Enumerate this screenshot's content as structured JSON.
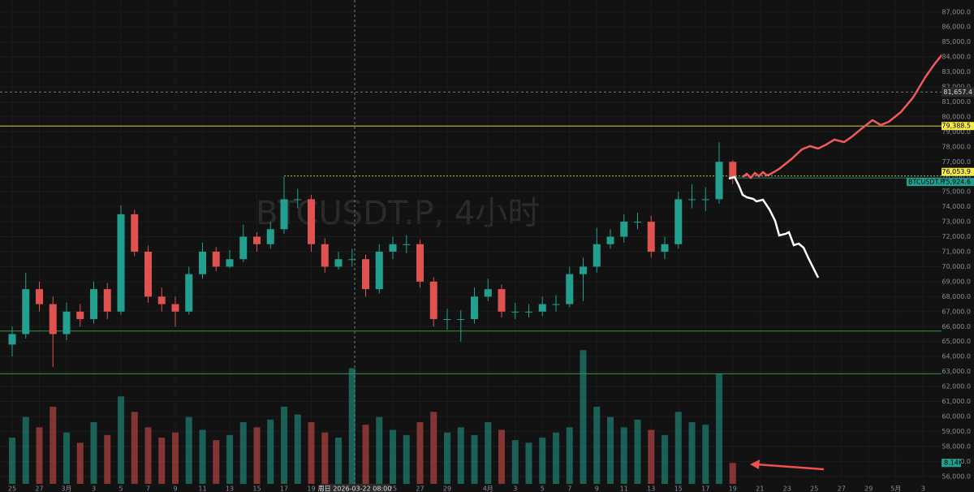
{
  "chart_data": {
    "type": "candlestick",
    "watermark": "BTCUSDT.P, 4小时",
    "symbol_tag": "BTCUSDT.P",
    "crosshair_time": "周日 2026-03-22  08:00",
    "crosshair_price": {
      "value": 81657.4,
      "label": "81,657.4"
    },
    "open": [
      64800,
      65500,
      68500,
      67500,
      65500,
      67000,
      66500,
      68500,
      67000,
      73500,
      71000,
      68000,
      67500,
      67000,
      69500,
      71000,
      70000,
      70500,
      72000,
      71500,
      72500,
      74500,
      74500,
      71500,
      70000,
      70500,
      70500,
      68500,
      71000,
      71500,
      71500,
      69000,
      66500,
      66500,
      66500,
      68000,
      68500,
      67000,
      67000,
      67000,
      67500,
      67500,
      69500,
      70000,
      71500,
      72000,
      73000,
      73000,
      71000,
      71500,
      74500,
      74500,
      74500,
      77000
    ],
    "high": [
      66000,
      69600,
      69000,
      68000,
      67600,
      67500,
      69000,
      68900,
      74100,
      73800,
      71400,
      68600,
      68000,
      70000,
      71600,
      71300,
      71100,
      72800,
      72300,
      73000,
      76000,
      75200,
      74800,
      71900,
      71000,
      71200,
      70800,
      71500,
      72000,
      72100,
      71800,
      69300,
      67200,
      67100,
      68600,
      69200,
      68800,
      67600,
      67500,
      68000,
      68100,
      70000,
      70600,
      72600,
      72500,
      73500,
      73600,
      73400,
      72000,
      75000,
      75500,
      75300,
      78300,
      77100
    ],
    "low": [
      64000,
      65200,
      67000,
      63300,
      65100,
      66000,
      66200,
      66500,
      66800,
      70700,
      67600,
      67000,
      66000,
      66800,
      69200,
      69700,
      69900,
      70300,
      71000,
      71200,
      72200,
      73900,
      71000,
      69600,
      69800,
      70000,
      68000,
      68200,
      70500,
      70900,
      68600,
      66000,
      65800,
      65000,
      66200,
      67700,
      66600,
      66500,
      66600,
      66700,
      67000,
      67300,
      67700,
      69600,
      71200,
      71600,
      72500,
      70600,
      70500,
      71200,
      73900,
      73700,
      74200,
      75500
    ],
    "close": [
      65500,
      68500,
      67500,
      65500,
      67000,
      66500,
      68500,
      67000,
      73500,
      71000,
      68000,
      67500,
      67000,
      69500,
      71000,
      70000,
      70500,
      72000,
      71500,
      72500,
      74500,
      74500,
      71500,
      70000,
      70500,
      70500,
      68500,
      71000,
      71500,
      71500,
      69000,
      66500,
      66500,
      66500,
      68000,
      68500,
      67000,
      67000,
      67000,
      67500,
      67500,
      69500,
      70000,
      71500,
      72000,
      73000,
      73000,
      71000,
      71500,
      74500,
      74500,
      74500,
      77000,
      75924.6
    ],
    "up_color": "#22a08f",
    "down_color": "#e0524f",
    "volume": [
      18,
      26,
      22,
      30,
      20,
      16,
      24,
      19,
      34,
      28,
      22,
      18,
      20,
      26,
      21,
      17,
      19,
      24,
      22,
      25,
      30,
      27,
      24,
      20,
      18,
      45,
      23,
      26,
      21,
      19,
      24,
      28,
      20,
      22,
      19,
      24,
      21,
      17,
      16,
      18,
      20,
      22,
      52,
      30,
      26,
      22,
      25,
      21,
      19,
      28,
      24,
      23,
      43,
      8.14
    ],
    "volume_label": "8.14K",
    "vlim": [
      0,
      60
    ],
    "ylim": [
      55500,
      87800
    ],
    "yticks": [
      {
        "value": 56000,
        "label": "56,000.0"
      },
      {
        "value": 57000,
        "label": "57,000.0"
      },
      {
        "value": 58000,
        "label": "58,000.0"
      },
      {
        "value": 59000,
        "label": "59,000.0"
      },
      {
        "value": 60000,
        "label": "60,000.0"
      },
      {
        "value": 61000,
        "label": "61,000.0"
      },
      {
        "value": 62000,
        "label": "62,000.0"
      },
      {
        "value": 63000,
        "label": "63,000.0"
      },
      {
        "value": 64000,
        "label": "64,000.0"
      },
      {
        "value": 65000,
        "label": "65,000.0"
      },
      {
        "value": 66000,
        "label": "66,000.0"
      },
      {
        "value": 67000,
        "label": "67,000.0"
      },
      {
        "value": 68000,
        "label": "68,000.0"
      },
      {
        "value": 69000,
        "label": "69,000.0"
      },
      {
        "value": 70000,
        "label": "70,000.0"
      },
      {
        "value": 71000,
        "label": "71,000.0"
      },
      {
        "value": 72000,
        "label": "72,000.0"
      },
      {
        "value": 73000,
        "label": "73,000.0"
      },
      {
        "value": 74000,
        "label": "74,000.0"
      },
      {
        "value": 75000,
        "label": "75,000.0"
      },
      {
        "value": 76000,
        "label": "76,000.0"
      },
      {
        "value": 77000,
        "label": "77,000.0"
      },
      {
        "value": 78000,
        "label": "78,000.0"
      },
      {
        "value": 79000,
        "label": "79,000.0"
      },
      {
        "value": 80000,
        "label": "80,000.0"
      },
      {
        "value": 81000,
        "label": "81,000.0"
      },
      {
        "value": 82000,
        "label": "82,000.0"
      },
      {
        "value": 83000,
        "label": "83,000.0"
      },
      {
        "value": 84000,
        "label": "84,000.0"
      },
      {
        "value": 85000,
        "label": "85,000.0"
      },
      {
        "value": 86000,
        "label": "86,000.0"
      },
      {
        "value": 87000,
        "label": "87,000.0"
      }
    ],
    "levels": [
      {
        "value": 79388.5,
        "label": "79,388.5",
        "color": "#f5e94a"
      },
      {
        "value": 76053.9,
        "label": "76,053.9",
        "color": "#f5e94a"
      },
      {
        "value": 75924.6,
        "label": "75,924.6",
        "color": "#22a08f"
      }
    ],
    "support_lines": [
      65700,
      62850
    ],
    "support_color": "#3d8f4a",
    "xticks": [
      "25",
      "27",
      "3月",
      "3",
      "5",
      "7",
      "9",
      "11",
      "13",
      "15",
      "17",
      "19",
      "25",
      "27",
      "29",
      "4月",
      "3",
      "5",
      "7",
      "9",
      "11",
      "13",
      "15",
      "17",
      "19",
      "21",
      "23",
      "25",
      "27",
      "29",
      "5月",
      "3"
    ]
  }
}
